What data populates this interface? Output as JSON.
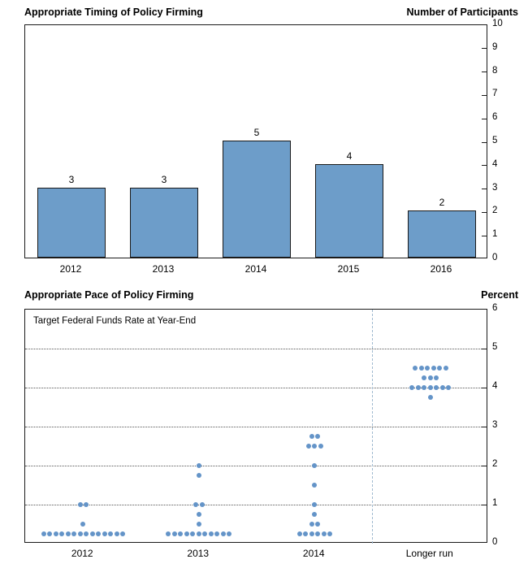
{
  "chart_data": [
    {
      "type": "bar",
      "title": "Appropriate Timing of Policy Firming",
      "axis_label": "Number of Participants",
      "axis_side": "right",
      "categories": [
        "2012",
        "2013",
        "2014",
        "2015",
        "2016"
      ],
      "values": [
        3,
        3,
        5,
        4,
        2
      ],
      "bar_labels": [
        "3",
        "3",
        "5",
        "4",
        "2"
      ],
      "ylim": [
        0,
        10
      ],
      "yticks": [
        0,
        1,
        2,
        3,
        4,
        5,
        6,
        7,
        8,
        9,
        10
      ],
      "grid": false,
      "colors": {
        "bar": "#6D9DC9",
        "bar_border": "#1A1A1A"
      }
    },
    {
      "type": "scatter",
      "title": "Appropriate Pace of Policy Firming",
      "axis_label": "Percent",
      "axis_side": "right",
      "inner_label": "Target Federal Funds Rate at Year-End",
      "categories": [
        "2012",
        "2013",
        "2014",
        "Longer run"
      ],
      "ylim": [
        0,
        6
      ],
      "yticks": [
        0,
        1,
        2,
        3,
        4,
        5,
        6
      ],
      "grid": true,
      "separator": {
        "after_category_index": 2,
        "style": "dashed",
        "color": "#9FB9CF"
      },
      "colors": {
        "dot": "#6494C8",
        "grid": "#555555"
      },
      "series": [
        {
          "category": "2012",
          "points": [
            {
              "rate": 0.25,
              "count": 14
            },
            {
              "rate": 0.5,
              "count": 1
            },
            {
              "rate": 1.0,
              "count": 2
            }
          ]
        },
        {
          "category": "2013",
          "points": [
            {
              "rate": 0.25,
              "count": 11
            },
            {
              "rate": 0.5,
              "count": 1
            },
            {
              "rate": 0.75,
              "count": 1
            },
            {
              "rate": 1.0,
              "count": 2
            },
            {
              "rate": 1.75,
              "count": 1
            },
            {
              "rate": 2.0,
              "count": 1
            }
          ]
        },
        {
          "category": "2014",
          "points": [
            {
              "rate": 0.25,
              "count": 6
            },
            {
              "rate": 0.5,
              "count": 2
            },
            {
              "rate": 0.75,
              "count": 1
            },
            {
              "rate": 1.0,
              "count": 1
            },
            {
              "rate": 1.5,
              "count": 1
            },
            {
              "rate": 2.0,
              "count": 1
            },
            {
              "rate": 2.5,
              "count": 3
            },
            {
              "rate": 2.75,
              "count": 2
            }
          ]
        },
        {
          "category": "Longer run",
          "points": [
            {
              "rate": 3.75,
              "count": 1
            },
            {
              "rate": 4.0,
              "count": 7
            },
            {
              "rate": 4.25,
              "count": 3
            },
            {
              "rate": 4.5,
              "count": 6
            }
          ]
        }
      ]
    }
  ]
}
